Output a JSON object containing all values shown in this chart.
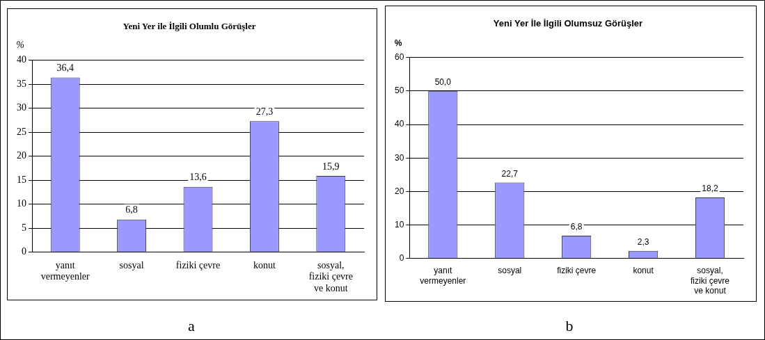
{
  "chart_data": [
    {
      "type": "bar",
      "title": "Yeni Yer ile İlgili Olumlu Görüşler",
      "ylabel": "%",
      "categories": [
        "yanıt vermeyenler",
        "sosyal",
        "fiziki çevre",
        "konut",
        "sosyal, fiziki çevre ve konut"
      ],
      "values": [
        36.4,
        6.8,
        13.6,
        27.3,
        15.9
      ],
      "value_labels": [
        "36,4",
        "6,8",
        "13,6",
        "27,3",
        "15,9"
      ],
      "color": "#9999ff",
      "ylim": [
        0,
        40
      ],
      "yticks": [
        0,
        5,
        10,
        15,
        20,
        25,
        30,
        35,
        40
      ],
      "grid": "y",
      "legend": false,
      "annotations": [
        "a"
      ]
    },
    {
      "type": "bar",
      "title": "Yeni Yer İle İlgili Olumsuz Görüşler",
      "ylabel": "%",
      "categories": [
        "yanıt vermeyenler",
        "sosyal",
        "fiziki çevre",
        "konut",
        "sosyal, fiziki çevre ve konut"
      ],
      "values": [
        50.0,
        22.7,
        6.8,
        2.3,
        18.2
      ],
      "value_labels": [
        "50,0",
        "22,7",
        "6,8",
        "2,3",
        "18,2"
      ],
      "color": "#9999ff",
      "ylim": [
        0,
        60
      ],
      "yticks": [
        0,
        10,
        20,
        30,
        40,
        50,
        60
      ],
      "grid": "y",
      "legend": false,
      "annotations": [
        "b"
      ]
    }
  ]
}
